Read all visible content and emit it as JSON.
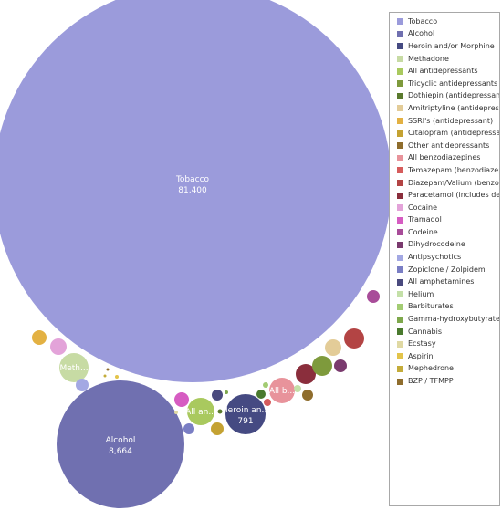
{
  "chart_data": {
    "type": "bubble",
    "series": [
      {
        "name": "Tobacco",
        "color": "#9b9bdb",
        "value": 81400,
        "value_label": "81,400",
        "bubble_label": "Tobacco"
      },
      {
        "name": "Alcohol",
        "color": "#7070b0",
        "value": 8664,
        "value_label": "8,664",
        "bubble_label": "Alcohol"
      },
      {
        "name": "Heroin and/or Morphine",
        "color": "#454a82",
        "value": 791,
        "value_label": "791",
        "bubble_label": "Heroin an..."
      },
      {
        "name": "Methadone",
        "color": "#c7dba4",
        "bubble_label": "Meth..."
      },
      {
        "name": "All antidepressants",
        "color": "#a9c95e",
        "bubble_label": "All an..."
      },
      {
        "name": "Tricyclic antidepressants",
        "color": "#7e9a3c"
      },
      {
        "name": "Dothiepin (antidepressant)",
        "color": "#5a7a2e"
      },
      {
        "name": "Amitriptyline (antidepressant)",
        "color": "#e3cc98"
      },
      {
        "name": "SSRI's (antidepressant)",
        "color": "#e3b143"
      },
      {
        "name": "Citalopram  (antidepressant)",
        "color": "#c4a232"
      },
      {
        "name": "Other antidepressants",
        "color": "#8f6d2d"
      },
      {
        "name": "All benzodiazepines",
        "color": "#e8939b",
        "bubble_label": "All b..."
      },
      {
        "name": "Temazepam (benzodiazepine)",
        "color": "#d65c5c"
      },
      {
        "name": "Diazepam/Valium (benzodiazepine)",
        "color": "#b34444"
      },
      {
        "name": "Paracetamol (includes dextropropoxyphene)",
        "color": "#8a2e3c"
      },
      {
        "name": "Cocaine",
        "color": "#e3a3d9"
      },
      {
        "name": "Tramadol",
        "color": "#d65cc2"
      },
      {
        "name": "Codeine",
        "color": "#a84c99"
      },
      {
        "name": "Dihydrocodeine",
        "color": "#7a3a6e"
      },
      {
        "name": "Antipsychotics",
        "color": "#a3a8e3"
      },
      {
        "name": "Zopiclone / Zolpidem",
        "color": "#7a7ec4"
      },
      {
        "name": "All amphetamines",
        "color": "#4a4a7e"
      },
      {
        "name": "Helium",
        "color": "#c4e0a8"
      },
      {
        "name": "Barbiturates",
        "color": "#a3cc73"
      },
      {
        "name": "Gamma-hydroxybutyrate (GHB)",
        "color": "#7ea84c"
      },
      {
        "name": "Cannabis",
        "color": "#4a7a2e"
      },
      {
        "name": "Ecstasy",
        "color": "#e0d9a3"
      },
      {
        "name": "Aspirin",
        "color": "#e3c44a"
      },
      {
        "name": "Mephedrone",
        "color": "#c4ac3a"
      },
      {
        "name": "BZP / TFMPP",
        "color": "#8f6d2d"
      }
    ]
  },
  "legend": {
    "items": [
      {
        "label": "Tobacco",
        "color": "#9b9bdb"
      },
      {
        "label": "Alcohol",
        "color": "#7070b0"
      },
      {
        "label": "Heroin and/or Morphine",
        "color": "#454a82"
      },
      {
        "label": "Methadone",
        "color": "#c7dba4"
      },
      {
        "label": "All antidepressants",
        "color": "#a9c95e"
      },
      {
        "label": "Tricyclic antidepressants",
        "color": "#7e9a3c"
      },
      {
        "label": "Dothiepin (antidepressant)",
        "color": "#5a7a2e"
      },
      {
        "label": "Amitriptyline (antidepressant)",
        "color": "#e3cc98"
      },
      {
        "label": "SSRI's (antidepressant)",
        "color": "#e3b143"
      },
      {
        "label": "Citalopram  (antidepressant)",
        "color": "#c4a232"
      },
      {
        "label": "Other antidepressants",
        "color": "#8f6d2d"
      },
      {
        "label": "All benzodiazepines",
        "color": "#e8939b"
      },
      {
        "label": "Temazepam (benzodiazepine)",
        "color": "#d65c5c"
      },
      {
        "label": "Diazepam/Valium (benzodiazepi",
        "color": "#b34444"
      },
      {
        "label": "Paracetamol (includes dextropr",
        "color": "#8a2e3c"
      },
      {
        "label": "Cocaine",
        "color": "#e3a3d9"
      },
      {
        "label": "Tramadol",
        "color": "#d65cc2"
      },
      {
        "label": "Codeine",
        "color": "#a84c99"
      },
      {
        "label": "Dihydrocodeine",
        "color": "#7a3a6e"
      },
      {
        "label": "Antipsychotics",
        "color": "#a3a8e3"
      },
      {
        "label": "Zopiclone / Zolpidem",
        "color": "#7a7ec4"
      },
      {
        "label": "All amphetamines",
        "color": "#4a4a7e"
      },
      {
        "label": "Helium",
        "color": "#c4e0a8"
      },
      {
        "label": "Barbiturates",
        "color": "#a3cc73"
      },
      {
        "label": "Gamma-hydroxybutyrate (GHB",
        "color": "#7ea84c"
      },
      {
        "label": "Cannabis",
        "color": "#4a7a2e"
      },
      {
        "label": "Ecstasy",
        "color": "#e0d9a3"
      },
      {
        "label": "Aspirin",
        "color": "#e3c44a"
      },
      {
        "label": "Mephedrone",
        "color": "#c4ac3a"
      },
      {
        "label": "BZP / TFMPP",
        "color": "#8f6d2d"
      }
    ]
  }
}
